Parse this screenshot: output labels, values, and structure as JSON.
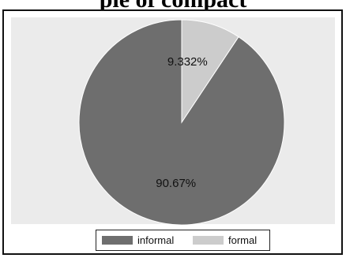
{
  "figure": {
    "top_title_partial": "pie of compact"
  },
  "chart_data": {
    "type": "pie",
    "title": "",
    "start_angle_deg": 90,
    "direction": "counterclockwise",
    "slices": [
      {
        "name": "informal",
        "value": 90.67,
        "label": "90.67%",
        "color": "#6e6e6e"
      },
      {
        "name": "formal",
        "value": 9.332,
        "label": "9.332%",
        "color": "#cccccc"
      }
    ],
    "legend": {
      "placement": "bottom",
      "entries": [
        "informal",
        "formal"
      ]
    },
    "plot_background": "#ebebeb"
  }
}
